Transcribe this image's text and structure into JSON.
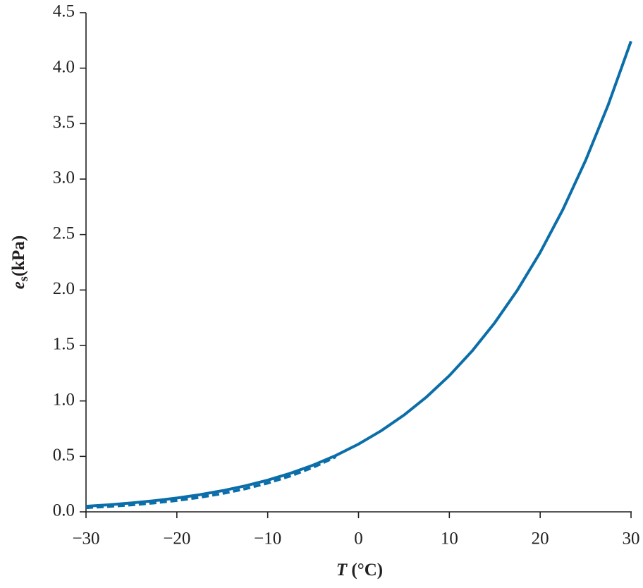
{
  "chart_data": {
    "type": "line",
    "x_label": {
      "symbol": "T",
      "unit": "(°C)"
    },
    "y_label": {
      "symbol": "e",
      "subscript": "s",
      "unit": "(kPa)"
    },
    "x": [
      -30,
      -27.5,
      -25,
      -22.5,
      -20,
      -17.5,
      -15,
      -12.5,
      -10,
      -7.5,
      -5,
      -2.5,
      0,
      2.5,
      5,
      7.5,
      10,
      12.5,
      15,
      17.5,
      20,
      22.5,
      25,
      27.5,
      30
    ],
    "series": [
      {
        "color": "#0b6ea9",
        "dash": false,
        "values": [
          0.0502,
          0.0635,
          0.0799,
          0.1001,
          0.1246,
          0.1544,
          0.1905,
          0.2338,
          0.2857,
          0.3476,
          0.4212,
          0.5082,
          0.6108,
          0.7313,
          0.8723,
          1.0368,
          1.2279,
          1.4495,
          1.7053,
          2.0,
          2.3382,
          2.7254,
          3.1679,
          3.6716,
          4.2428
        ]
      },
      {
        "color": "#0b6ea9",
        "dash": true,
        "values": [
          0.0377,
          0.0488,
          0.0629,
          0.0806,
          0.1028,
          0.1305,
          0.1649,
          0.2073,
          0.2595,
          0.3234,
          0.4014,
          0.4961,
          null,
          null,
          null,
          null,
          null,
          null,
          null,
          null,
          null,
          null,
          null,
          null,
          null
        ]
      }
    ],
    "xlim": [
      -30,
      30
    ],
    "xticks": [
      {
        "value": -30,
        "label": "−30"
      },
      {
        "value": -20,
        "label": "−20"
      },
      {
        "value": -10,
        "label": "−10"
      },
      0,
      10,
      20,
      30
    ],
    "ylim": [
      0,
      4.5
    ],
    "yticks": [
      {
        "value": 0,
        "label": "0.0"
      },
      0.5,
      {
        "value": 1,
        "label": "1.0"
      },
      1.5,
      {
        "value": 2,
        "label": "2.0"
      },
      2.5,
      {
        "value": 3,
        "label": "3.0"
      },
      3.5,
      {
        "value": 4,
        "label": "4.0"
      },
      4.5
    ],
    "grid": false
  }
}
